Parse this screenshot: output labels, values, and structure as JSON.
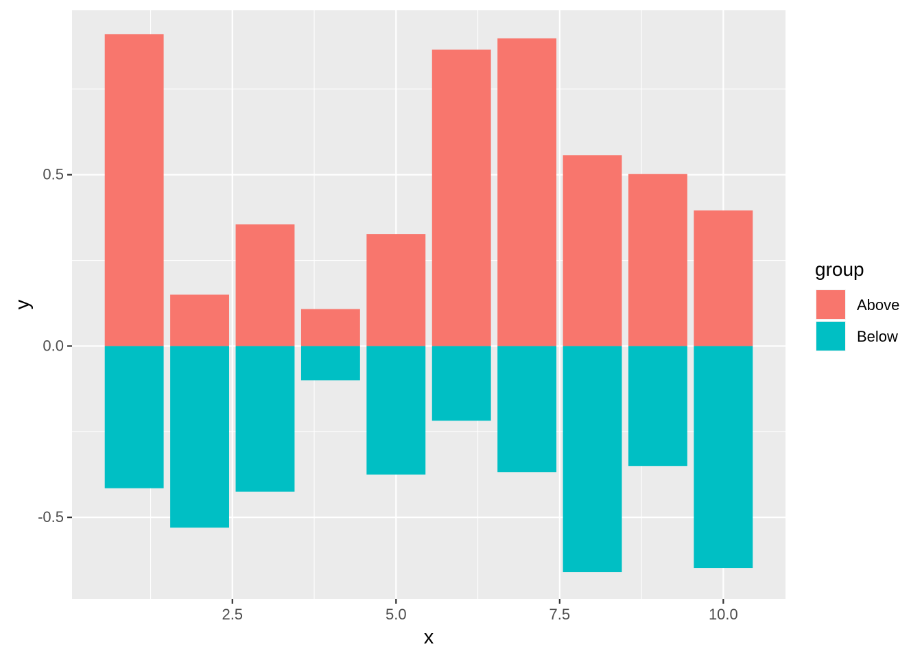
{
  "chart_data": {
    "type": "bar",
    "stacked": true,
    "x": [
      1,
      2,
      3,
      4,
      5,
      6,
      7,
      8,
      9,
      10
    ],
    "series": [
      {
        "name": "Above",
        "color": "#F8766D",
        "values": [
          0.91,
          0.15,
          0.355,
          0.108,
          0.327,
          0.865,
          0.898,
          0.557,
          0.502,
          0.396
        ]
      },
      {
        "name": "Below",
        "color": "#00BFC4",
        "values": [
          -0.415,
          -0.53,
          -0.425,
          -0.1,
          -0.375,
          -0.218,
          -0.368,
          -0.66,
          -0.35,
          -0.648
        ]
      }
    ],
    "xlabel": "x",
    "ylabel": "y",
    "legend_title": "group",
    "legend_position": "right",
    "x_ticks": [
      2.5,
      5.0,
      7.5,
      10.0
    ],
    "x_tick_labels": [
      "2.5",
      "5.0",
      "7.5",
      "10.0"
    ],
    "y_ticks": [
      -0.5,
      0.0,
      0.5
    ],
    "y_tick_labels": [
      "-0.5",
      "0.0",
      "0.5"
    ],
    "xlim": [
      0.05,
      10.95
    ],
    "ylim": [
      -0.738,
      0.98
    ],
    "grid": true,
    "panel_background": "#EBEBEB"
  }
}
